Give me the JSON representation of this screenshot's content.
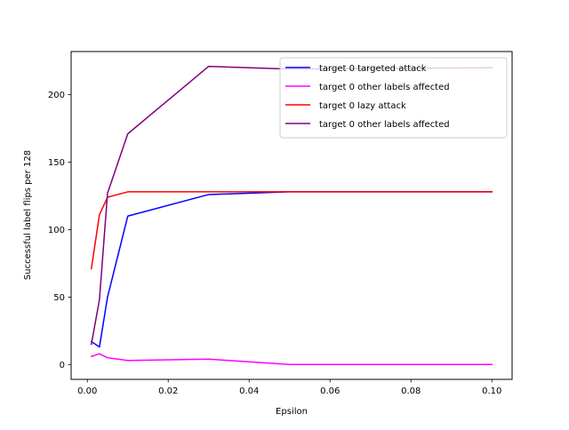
{
  "chart_data": {
    "type": "line",
    "title": "",
    "xlabel": "Epsilon",
    "ylabel": "Successful label flips per 128",
    "xlim": [
      -0.004,
      0.105
    ],
    "ylim": [
      -11,
      232
    ],
    "x_ticks": [
      0.0,
      0.02,
      0.04,
      0.06,
      0.08,
      0.1
    ],
    "x_tick_labels": [
      "0.00",
      "0.02",
      "0.04",
      "0.06",
      "0.08",
      "0.10"
    ],
    "y_ticks": [
      0,
      50,
      100,
      150,
      200
    ],
    "y_tick_labels": [
      "0",
      "50",
      "100",
      "150",
      "200"
    ],
    "grid": false,
    "legend_position": "top-right",
    "x": [
      0.001,
      0.003,
      0.005,
      0.01,
      0.03,
      0.05,
      0.1
    ],
    "series": [
      {
        "name": "target 0 targeted attack",
        "color": "#0000ff",
        "values": [
          17,
          13,
          50,
          110,
          126,
          128,
          128
        ]
      },
      {
        "name": "target 0 other labels affected",
        "color": "#ff00ff",
        "values": [
          6,
          8,
          5,
          3,
          4,
          0,
          0
        ]
      },
      {
        "name": "target 0 lazy attack",
        "color": "#ff0000",
        "values": [
          71,
          111,
          124,
          128,
          128,
          128,
          128
        ]
      },
      {
        "name": "target 0 other labels affected",
        "color": "#800080",
        "values": [
          15,
          48,
          127,
          171,
          221,
          219,
          220
        ]
      }
    ]
  }
}
